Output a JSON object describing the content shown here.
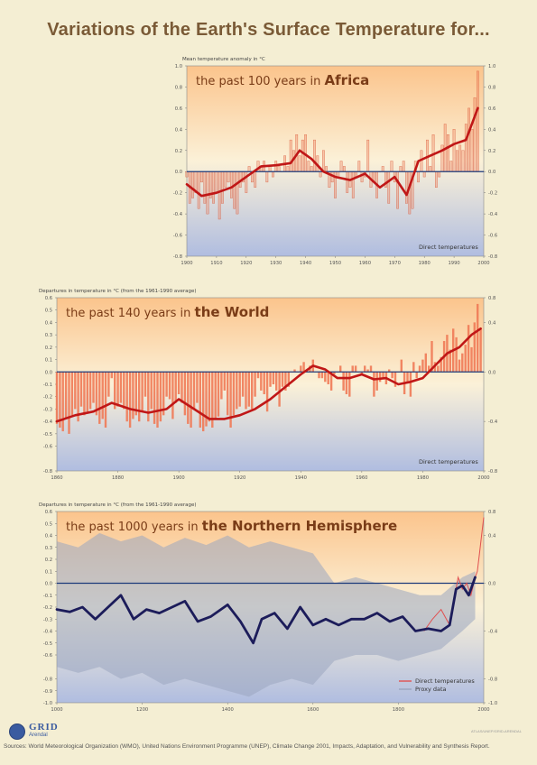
{
  "title": "Variations of the Earth's Surface Temperature for...",
  "colors": {
    "background": "#f4eed3",
    "plot_top": "#fbc48c",
    "plot_mid": "#fbf1d8",
    "plot_bottom": "#b0bde0",
    "trend": "#c01717",
    "bars": "#f07a56",
    "zero_line": "#1c3a7a",
    "proxy": "#9aa5bf",
    "proxy_trend": "#1c1c5a",
    "title": "#7a5a36"
  },
  "chart_data": [
    {
      "type": "bar",
      "title_prefix": "the past 100 years in",
      "title_emphasis": "Africa",
      "ylabel": "Mean temperature anomaly in °C",
      "legend": [
        "Direct temperatures"
      ],
      "legend_position": "bottom-right",
      "xlim": [
        1900,
        2000
      ],
      "ylim": [
        -0.8,
        1.0
      ],
      "x_ticks": [
        "1900",
        "1910",
        "1920",
        "1930",
        "1940",
        "1950",
        "1960",
        "1970",
        "1980",
        "1990",
        "2000"
      ],
      "y_ticks": [
        "1.0",
        "0.8",
        "0.6",
        "0.4",
        "0.2",
        "0.0",
        "-0.2",
        "-0.4",
        "-0.6",
        "-0.8"
      ],
      "bars": {
        "x": [
          1900,
          1901,
          1902,
          1903,
          1904,
          1905,
          1906,
          1907,
          1908,
          1909,
          1910,
          1911,
          1912,
          1913,
          1914,
          1915,
          1916,
          1917,
          1918,
          1919,
          1920,
          1921,
          1922,
          1923,
          1924,
          1925,
          1926,
          1927,
          1928,
          1929,
          1930,
          1931,
          1932,
          1933,
          1934,
          1935,
          1936,
          1937,
          1938,
          1939,
          1940,
          1941,
          1942,
          1943,
          1944,
          1945,
          1946,
          1947,
          1948,
          1949,
          1950,
          1951,
          1952,
          1953,
          1954,
          1955,
          1956,
          1957,
          1958,
          1959,
          1960,
          1961,
          1962,
          1963,
          1964,
          1965,
          1966,
          1967,
          1968,
          1969,
          1970,
          1971,
          1972,
          1973,
          1974,
          1975,
          1976,
          1977,
          1978,
          1979,
          1980,
          1981,
          1982,
          1983,
          1984,
          1985,
          1986,
          1987,
          1988,
          1989,
          1990,
          1991,
          1992,
          1993,
          1994,
          1995,
          1996,
          1997,
          1998
        ],
        "values": [
          -0.05,
          -0.3,
          -0.25,
          -0.2,
          -0.35,
          -0.1,
          -0.3,
          -0.4,
          -0.25,
          -0.3,
          -0.2,
          -0.45,
          -0.3,
          -0.15,
          -0.1,
          -0.25,
          -0.35,
          -0.4,
          -0.15,
          -0.1,
          -0.2,
          0.05,
          -0.1,
          -0.15,
          0.1,
          0.05,
          0.1,
          -0.1,
          0.05,
          -0.05,
          0.1,
          0.05,
          0.0,
          0.15,
          0.05,
          0.3,
          0.2,
          0.35,
          0.15,
          0.3,
          0.35,
          0.1,
          0.05,
          0.3,
          0.15,
          -0.05,
          0.2,
          0.05,
          -0.15,
          -0.1,
          -0.25,
          -0.05,
          0.1,
          0.05,
          -0.2,
          -0.15,
          -0.25,
          -0.05,
          0.1,
          -0.1,
          -0.05,
          0.3,
          -0.15,
          -0.1,
          -0.25,
          0.0,
          0.05,
          -0.15,
          -0.3,
          0.1,
          -0.1,
          -0.35,
          0.05,
          0.1,
          -0.3,
          -0.4,
          -0.35,
          0.1,
          -0.1,
          0.2,
          -0.05,
          0.3,
          0.05,
          0.35,
          -0.15,
          -0.05,
          0.25,
          0.45,
          0.35,
          0.1,
          0.4,
          0.2,
          0.25,
          0.2,
          0.45,
          0.6,
          0.4,
          0.7,
          0.95
        ]
      },
      "trend": {
        "x": [
          1900,
          1905,
          1910,
          1915,
          1920,
          1925,
          1930,
          1935,
          1938,
          1942,
          1946,
          1950,
          1955,
          1960,
          1965,
          1970,
          1974,
          1978,
          1982,
          1986,
          1990,
          1994,
          1998
        ],
        "values": [
          -0.12,
          -0.23,
          -0.2,
          -0.15,
          -0.05,
          0.05,
          0.06,
          0.08,
          0.2,
          0.12,
          0.0,
          -0.05,
          -0.08,
          -0.02,
          -0.15,
          -0.05,
          -0.22,
          0.1,
          0.15,
          0.2,
          0.26,
          0.3,
          0.6
        ]
      }
    },
    {
      "type": "bar",
      "title_prefix": "the past 140 years in",
      "title_emphasis": "the World",
      "ylabel": "Departures in temperature in °C (from the 1961-1990 average)",
      "legend": [
        "Direct temperatures"
      ],
      "legend_position": "bottom-right",
      "xlim": [
        1860,
        2000
      ],
      "ylim": [
        -0.8,
        0.6
      ],
      "x_ticks": [
        "1860",
        "1880",
        "1900",
        "1920",
        "1940",
        "1960",
        "1980",
        "2000"
      ],
      "y_ticks": [
        "0.6",
        "0.5",
        "0.4",
        "0.3",
        "0.2",
        "0.1",
        "0.0",
        "-0.1",
        "-0.2",
        "-0.3",
        "-0.4",
        "-0.5",
        "-0.6",
        "-0.8"
      ],
      "right_ticks": [
        "0.8",
        "0.4",
        "0.0",
        "-0.4",
        "-0.8"
      ],
      "bars": {
        "x": [
          1860,
          1861,
          1862,
          1863,
          1864,
          1865,
          1866,
          1867,
          1868,
          1869,
          1870,
          1871,
          1872,
          1873,
          1874,
          1875,
          1876,
          1877,
          1878,
          1879,
          1880,
          1881,
          1882,
          1883,
          1884,
          1885,
          1886,
          1887,
          1888,
          1889,
          1890,
          1891,
          1892,
          1893,
          1894,
          1895,
          1896,
          1897,
          1898,
          1899,
          1900,
          1901,
          1902,
          1903,
          1904,
          1905,
          1906,
          1907,
          1908,
          1909,
          1910,
          1911,
          1912,
          1913,
          1914,
          1915,
          1916,
          1917,
          1918,
          1919,
          1920,
          1921,
          1922,
          1923,
          1924,
          1925,
          1926,
          1927,
          1928,
          1929,
          1930,
          1931,
          1932,
          1933,
          1934,
          1935,
          1936,
          1937,
          1938,
          1939,
          1940,
          1941,
          1942,
          1943,
          1944,
          1945,
          1946,
          1947,
          1948,
          1949,
          1950,
          1951,
          1952,
          1953,
          1954,
          1955,
          1956,
          1957,
          1958,
          1959,
          1960,
          1961,
          1962,
          1963,
          1964,
          1965,
          1966,
          1967,
          1968,
          1969,
          1970,
          1971,
          1972,
          1973,
          1974,
          1975,
          1976,
          1977,
          1978,
          1979,
          1980,
          1981,
          1982,
          1983,
          1984,
          1985,
          1986,
          1987,
          1988,
          1989,
          1990,
          1991,
          1992,
          1993,
          1994,
          1995,
          1996,
          1997,
          1998,
          1999
        ],
        "values": [
          -0.42,
          -0.45,
          -0.48,
          -0.38,
          -0.5,
          -0.35,
          -0.3,
          -0.4,
          -0.28,
          -0.35,
          -0.32,
          -0.3,
          -0.25,
          -0.35,
          -0.42,
          -0.38,
          -0.45,
          -0.2,
          -0.05,
          -0.3,
          -0.28,
          -0.25,
          -0.3,
          -0.4,
          -0.45,
          -0.38,
          -0.35,
          -0.4,
          -0.32,
          -0.2,
          -0.4,
          -0.3,
          -0.42,
          -0.45,
          -0.4,
          -0.35,
          -0.2,
          -0.22,
          -0.38,
          -0.25,
          -0.18,
          -0.25,
          -0.35,
          -0.42,
          -0.45,
          -0.3,
          -0.25,
          -0.45,
          -0.48,
          -0.44,
          -0.4,
          -0.45,
          -0.38,
          -0.36,
          -0.22,
          -0.15,
          -0.35,
          -0.45,
          -0.35,
          -0.3,
          -0.28,
          -0.2,
          -0.3,
          -0.28,
          -0.3,
          -0.2,
          -0.05,
          -0.15,
          -0.18,
          -0.32,
          -0.12,
          -0.1,
          -0.15,
          -0.28,
          -0.12,
          -0.15,
          -0.12,
          0.0,
          0.02,
          0.0,
          0.05,
          0.08,
          0.02,
          0.05,
          0.1,
          0.0,
          -0.05,
          -0.05,
          -0.08,
          -0.1,
          -0.15,
          -0.02,
          0.0,
          0.05,
          -0.15,
          -0.18,
          -0.2,
          0.05,
          0.05,
          0.0,
          -0.02,
          0.05,
          0.02,
          0.05,
          -0.2,
          -0.15,
          -0.08,
          -0.05,
          -0.1,
          0.02,
          -0.05,
          -0.12,
          0.0,
          0.1,
          -0.18,
          -0.08,
          -0.2,
          0.08,
          -0.05,
          0.05,
          0.1,
          0.15,
          0.05,
          0.25,
          0.08,
          0.05,
          0.12,
          0.25,
          0.3,
          0.18,
          0.35,
          0.28,
          0.1,
          0.15,
          0.22,
          0.38,
          0.2,
          0.4,
          0.55,
          0.35
        ]
      },
      "trend": {
        "x": [
          1860,
          1866,
          1872,
          1878,
          1884,
          1890,
          1896,
          1900,
          1905,
          1910,
          1915,
          1920,
          1925,
          1930,
          1935,
          1940,
          1944,
          1948,
          1952,
          1956,
          1960,
          1964,
          1968,
          1972,
          1976,
          1980,
          1984,
          1988,
          1992,
          1996,
          1999
        ],
        "values": [
          -0.4,
          -0.35,
          -0.32,
          -0.25,
          -0.3,
          -0.33,
          -0.3,
          -0.22,
          -0.3,
          -0.38,
          -0.38,
          -0.35,
          -0.3,
          -0.22,
          -0.12,
          -0.02,
          0.05,
          0.02,
          -0.05,
          -0.05,
          -0.02,
          -0.06,
          -0.05,
          -0.1,
          -0.08,
          -0.05,
          0.05,
          0.15,
          0.2,
          0.3,
          0.35
        ]
      }
    },
    {
      "type": "line",
      "title_prefix": "the past 1000 years in",
      "title_emphasis": "the Northern Hemisphere",
      "ylabel": "Departures in temperature in °C (from the 1961-1990 average)",
      "legend": [
        "Direct temperatures",
        "Proxy data"
      ],
      "legend_position": "bottom-right",
      "xlim": [
        1000,
        2000
      ],
      "ylim": [
        -1.0,
        0.6
      ],
      "x_ticks": [
        "1000",
        "1200",
        "1400",
        "1600",
        "1800",
        "2000"
      ],
      "y_ticks": [
        "0.6",
        "0.5",
        "0.4",
        "0.3",
        "0.2",
        "0.1",
        "0.0",
        "-0.1",
        "-0.2",
        "-0.3",
        "-0.4",
        "-0.5",
        "-0.6",
        "-0.8",
        "-0.9",
        "-1.0"
      ],
      "right_ticks": [
        "0.8",
        "0.4",
        "0.0",
        "-0.4",
        "-0.8",
        "-1.0"
      ],
      "proxy_band": {
        "x": [
          1000,
          1050,
          1100,
          1150,
          1200,
          1250,
          1300,
          1350,
          1400,
          1450,
          1500,
          1550,
          1600,
          1650,
          1700,
          1750,
          1800,
          1850,
          1900,
          1950,
          1980
        ],
        "upper": [
          0.35,
          0.3,
          0.42,
          0.35,
          0.4,
          0.3,
          0.38,
          0.32,
          0.4,
          0.3,
          0.35,
          0.3,
          0.25,
          0.0,
          0.05,
          0.0,
          -0.05,
          -0.1,
          -0.1,
          0.05,
          0.1
        ],
        "lower": [
          -0.7,
          -0.75,
          -0.7,
          -0.8,
          -0.75,
          -0.85,
          -0.8,
          -0.85,
          -0.9,
          -0.95,
          -0.85,
          -0.8,
          -0.85,
          -0.65,
          -0.6,
          -0.6,
          -0.65,
          -0.6,
          -0.55,
          -0.4,
          -0.3
        ]
      },
      "trend": {
        "x": [
          1000,
          1030,
          1060,
          1090,
          1120,
          1150,
          1180,
          1210,
          1240,
          1270,
          1300,
          1330,
          1360,
          1400,
          1430,
          1460,
          1480,
          1510,
          1540,
          1570,
          1600,
          1630,
          1660,
          1690,
          1720,
          1750,
          1780,
          1810,
          1840,
          1870,
          1900,
          1920,
          1935,
          1950,
          1965,
          1980
        ],
        "values": [
          -0.22,
          -0.24,
          -0.2,
          -0.3,
          -0.2,
          -0.1,
          -0.3,
          -0.22,
          -0.25,
          -0.2,
          -0.15,
          -0.32,
          -0.28,
          -0.18,
          -0.32,
          -0.5,
          -0.3,
          -0.25,
          -0.38,
          -0.2,
          -0.35,
          -0.3,
          -0.35,
          -0.3,
          -0.3,
          -0.25,
          -0.32,
          -0.28,
          -0.4,
          -0.38,
          -0.4,
          -0.35,
          -0.05,
          -0.02,
          -0.1,
          0.05
        ]
      },
      "direct": {
        "x": [
          1860,
          1880,
          1900,
          1920,
          1940,
          1950,
          1960,
          1970,
          1980,
          1985,
          1990,
          1995,
          2000
        ],
        "values": [
          -0.4,
          -0.3,
          -0.22,
          -0.35,
          0.05,
          -0.05,
          0.0,
          -0.1,
          0.05,
          0.1,
          0.25,
          0.4,
          0.55
        ]
      }
    }
  ],
  "footer": {
    "logo_text": "GRID",
    "logo_sub": "Arendal",
    "credit": "ATLAS/UNEP/GRID-ARENDAL",
    "sources": "Sources: World Meteorological Organization (WMO), United Nations Environment Programme (UNEP), Climate Change 2001, Impacts, Adaptation, and Vulnerability and Synthesis Report."
  }
}
